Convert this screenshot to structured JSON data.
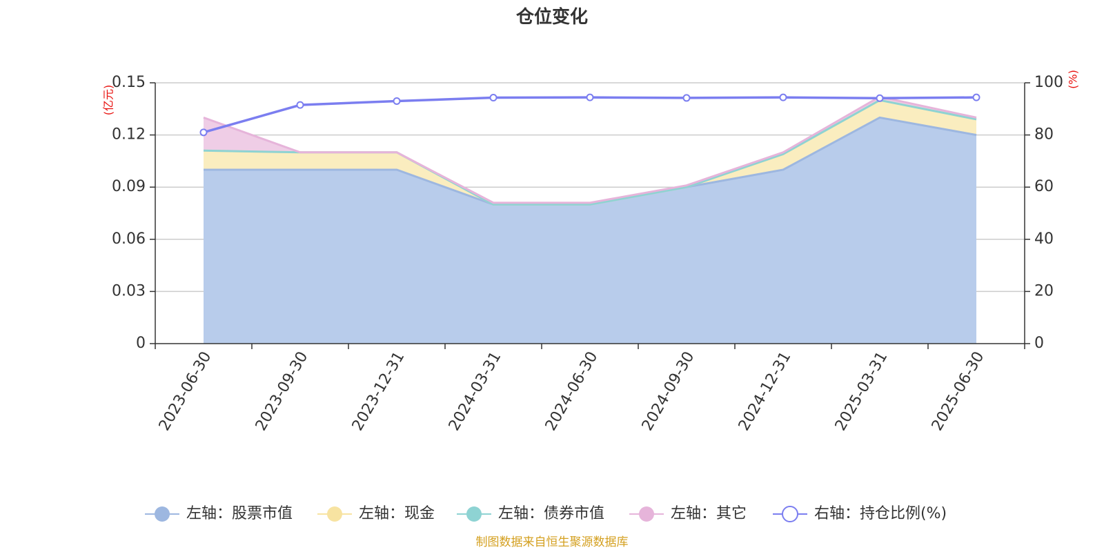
{
  "chart_data": {
    "type": "area",
    "title": "仓位变化",
    "categories": [
      "2023-06-30",
      "2023-09-30",
      "2023-12-31",
      "2024-03-31",
      "2024-06-30",
      "2024-09-30",
      "2024-12-31",
      "2025-03-31",
      "2025-06-30"
    ],
    "left_axis": {
      "unit": "(亿元)",
      "ylim": [
        0,
        0.15
      ],
      "ticks": [
        "0",
        "0.03",
        "0.06",
        "0.09",
        "0.12",
        "0.15"
      ]
    },
    "right_axis": {
      "unit": "(%)",
      "ylim": [
        0,
        100
      ],
      "ticks": [
        "0",
        "20",
        "40",
        "60",
        "80",
        "100"
      ]
    },
    "stacked": true,
    "series": [
      {
        "name": "左轴：股票市值",
        "axis": "left",
        "color": "#9db7e0",
        "fill": "#b8cceb",
        "values": [
          0.1,
          0.1,
          0.1,
          0.08,
          0.08,
          0.09,
          0.1,
          0.13,
          0.12
        ]
      },
      {
        "name": "左轴：现金",
        "axis": "left",
        "color": "#f7e3a1",
        "fill": "#faedbf",
        "values": [
          0.011,
          0.01,
          0.01,
          0.0,
          0.0,
          0.0,
          0.009,
          0.01,
          0.009
        ]
      },
      {
        "name": "左轴：债券市值",
        "axis": "left",
        "color": "#8ed3d3",
        "fill": "#a9dede",
        "values": [
          0,
          0,
          0,
          0,
          0,
          0,
          0,
          0,
          0
        ]
      },
      {
        "name": "左轴：其它",
        "axis": "left",
        "color": "#e6b4da",
        "fill": "#efcde6",
        "values": [
          0.019,
          0.0,
          0.0,
          0.001,
          0.001,
          0.001,
          0.001,
          0.002,
          0.001
        ]
      },
      {
        "name": "右轴：持仓比例(%)",
        "axis": "right",
        "type": "line",
        "color": "#7b7ef0",
        "values": [
          81,
          91.5,
          93,
          94.3,
          94.4,
          94.2,
          94.4,
          94.1,
          94.4
        ]
      }
    ],
    "grid": true,
    "legend_position": "bottom"
  },
  "footer": {
    "source": "制图数据来自恒生聚源数据库"
  }
}
